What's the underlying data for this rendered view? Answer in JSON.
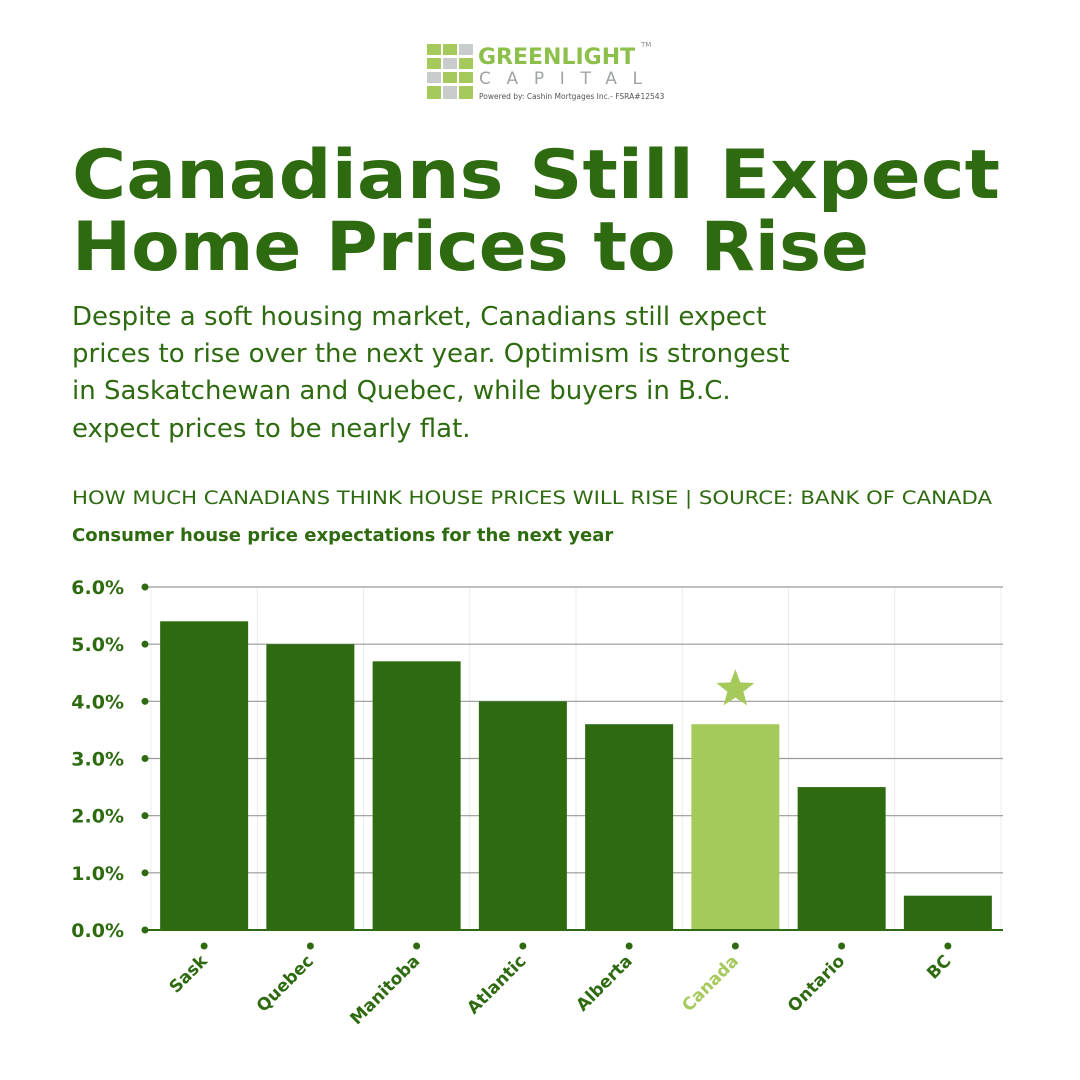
{
  "logo": {
    "name": "GREENLIGHT",
    "trademark": "TM",
    "subname": "CAPITAL",
    "powered_by": "Powered by:  Cashin Mortgages Inc.- FSRA#12543"
  },
  "headline": [
    "Canadians Still Expect",
    "Home Prices to Rise"
  ],
  "description": [
    "Despite a soft housing market, Canadians still expect",
    "prices to rise over the next year. Optimism is strongest",
    "in Saskatchewan and Quebec, while buyers in B.C.",
    "expect prices to be nearly flat."
  ],
  "chart_data": {
    "type": "bar",
    "title": "HOW MUCH CANADIANS THINK HOUSE PRICES WILL RISE | SOURCE: BANK OF CANADA",
    "subtitle": "Consumer house price expectations for the next year",
    "categories": [
      "Sask",
      "Quebec",
      "Manitoba",
      "Atlantic",
      "Alberta",
      "Canada",
      "Ontario",
      "BC"
    ],
    "values": [
      5.4,
      5.0,
      4.7,
      4.0,
      3.6,
      3.6,
      2.5,
      0.6
    ],
    "colors": [
      "#2e6b10",
      "#2e6b10",
      "#2e6b10",
      "#2e6b10",
      "#2e6b10",
      "#a6c95b",
      "#2e6b10",
      "#2e6b10"
    ],
    "highlight_color": "#a6c95b",
    "ylim": [
      0,
      6
    ],
    "yticks": [
      {
        "value": 0,
        "label": "0.0%"
      },
      {
        "value": 1,
        "label": "1.0%"
      },
      {
        "value": 2,
        "label": "2.0%"
      },
      {
        "value": 3,
        "label": "3.0%"
      },
      {
        "value": 4,
        "label": "4.0%"
      },
      {
        "value": 5,
        "label": "5.0%"
      },
      {
        "value": 6,
        "label": "6.0%"
      }
    ],
    "grid": true
  }
}
